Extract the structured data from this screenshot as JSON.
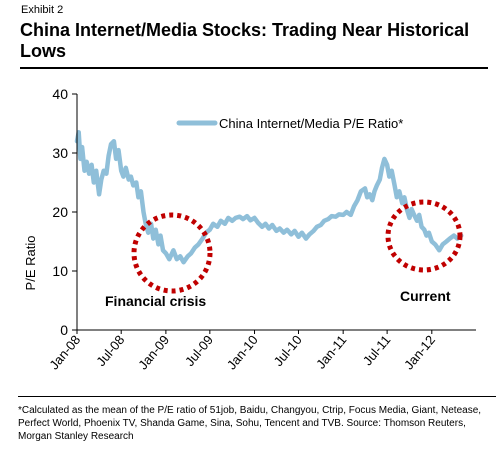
{
  "header": {
    "exhibit": "Exhibit 2",
    "title": "China Internet/Media Stocks: Trading Near Historical Lows"
  },
  "chart_data": {
    "type": "line",
    "title": "China Internet/Media Stocks: Trading Near Historical Lows",
    "xlabel": "",
    "ylabel": "P/E Ratio",
    "ylim": [
      0,
      40
    ],
    "yticks": [
      0,
      10,
      20,
      30,
      40
    ],
    "y_tick_labels": [
      "0",
      "10",
      "20",
      "30",
      "40"
    ],
    "x_tick_labels": [
      "Jan-08",
      "Jul-08",
      "Jan-09",
      "Jul-09",
      "Jan-10",
      "Jul-10",
      "Jan-11",
      "Jul-11",
      "Jan-12"
    ],
    "x_tick_dates": [
      "2008-01-01",
      "2008-07-01",
      "2009-01-01",
      "2009-07-01",
      "2010-01-01",
      "2010-07-01",
      "2011-01-01",
      "2011-07-01",
      "2012-01-01"
    ],
    "xlim": [
      "2008-01-01",
      "2012-07-01"
    ],
    "grid": false,
    "legend": "top-right",
    "series": [
      {
        "name": "China Internet/Media P/E Ratio*",
        "color": "#8fbfd9",
        "x": [
          "2008-01-01",
          "2008-01-08",
          "2008-01-15",
          "2008-01-22",
          "2008-02-01",
          "2008-02-10",
          "2008-02-20",
          "2008-03-01",
          "2008-03-10",
          "2008-03-20",
          "2008-04-01",
          "2008-04-10",
          "2008-04-20",
          "2008-05-01",
          "2008-05-10",
          "2008-05-20",
          "2008-06-01",
          "2008-06-10",
          "2008-06-20",
          "2008-07-01",
          "2008-07-10",
          "2008-07-20",
          "2008-08-01",
          "2008-08-10",
          "2008-08-20",
          "2008-09-01",
          "2008-09-10",
          "2008-09-20",
          "2008-10-01",
          "2008-10-10",
          "2008-10-20",
          "2008-11-01",
          "2008-11-10",
          "2008-11-20",
          "2008-12-01",
          "2008-12-10",
          "2008-12-20",
          "2009-01-01",
          "2009-01-15",
          "2009-02-01",
          "2009-02-15",
          "2009-03-01",
          "2009-03-15",
          "2009-04-01",
          "2009-04-15",
          "2009-05-01",
          "2009-05-15",
          "2009-06-01",
          "2009-06-15",
          "2009-07-01",
          "2009-07-15",
          "2009-08-01",
          "2009-08-15",
          "2009-09-01",
          "2009-09-15",
          "2009-10-01",
          "2009-10-15",
          "2009-11-01",
          "2009-11-15",
          "2009-12-01",
          "2009-12-15",
          "2010-01-01",
          "2010-01-15",
          "2010-02-01",
          "2010-02-15",
          "2010-03-01",
          "2010-03-15",
          "2010-04-01",
          "2010-04-15",
          "2010-05-01",
          "2010-05-15",
          "2010-06-01",
          "2010-06-15",
          "2010-07-01",
          "2010-07-15",
          "2010-08-01",
          "2010-08-15",
          "2010-09-01",
          "2010-09-15",
          "2010-10-01",
          "2010-10-15",
          "2010-11-01",
          "2010-11-15",
          "2010-12-01",
          "2010-12-15",
          "2011-01-01",
          "2011-01-15",
          "2011-02-01",
          "2011-02-15",
          "2011-03-01",
          "2011-03-15",
          "2011-04-01",
          "2011-04-10",
          "2011-04-20",
          "2011-05-01",
          "2011-05-10",
          "2011-05-20",
          "2011-06-01",
          "2011-06-10",
          "2011-06-20",
          "2011-07-01",
          "2011-07-10",
          "2011-07-20",
          "2011-08-01",
          "2011-08-10",
          "2011-08-20",
          "2011-09-01",
          "2011-09-10",
          "2011-09-20",
          "2011-10-01",
          "2011-10-10",
          "2011-10-20",
          "2011-11-01",
          "2011-11-10",
          "2011-11-20",
          "2011-12-01",
          "2011-12-10",
          "2011-12-20",
          "2012-01-01",
          "2012-01-15",
          "2012-02-01",
          "2012-02-15",
          "2012-03-01",
          "2012-03-15",
          "2012-04-01",
          "2012-04-15",
          "2012-05-01"
        ],
        "y": [
          32,
          33.5,
          29,
          31,
          27,
          28.5,
          26.5,
          28,
          25,
          27,
          23,
          25.5,
          27,
          26.5,
          29.5,
          31.5,
          32,
          29,
          30.5,
          27,
          26,
          27.5,
          25.5,
          26,
          24.5,
          25,
          22.5,
          23.5,
          20,
          18,
          16.5,
          18,
          15.5,
          17,
          14.5,
          16,
          13.5,
          13,
          12,
          13.5,
          12,
          12.5,
          11.5,
          12.5,
          13,
          14,
          14.5,
          15.5,
          16.5,
          17,
          18,
          17.5,
          18.5,
          18,
          19,
          18.5,
          19,
          19.2,
          18.8,
          19.3,
          18.6,
          19,
          18.2,
          17.5,
          18,
          17.2,
          17.8,
          16.8,
          17.2,
          16.5,
          17,
          16.2,
          16.8,
          15.8,
          16.5,
          15.5,
          16.2,
          16.8,
          17.5,
          17.8,
          18.5,
          18.8,
          19.3,
          19.2,
          19.6,
          19.5,
          20,
          19.5,
          21,
          22,
          23.5,
          24,
          22.5,
          23,
          22,
          23.5,
          24.5,
          25.5,
          27.5,
          29,
          28,
          26,
          27,
          24.5,
          22.5,
          23.5,
          21.5,
          22.5,
          20.5,
          19,
          20.5,
          19.5,
          18.5,
          19.5,
          17.5,
          17,
          16,
          16.5,
          15,
          14.5,
          13.5,
          14.5,
          15,
          15.5,
          16,
          15.5,
          16
        ]
      }
    ],
    "annotations": [
      "Financial crisis",
      "Current"
    ]
  },
  "footnote": "*Calculated as the mean of the P/E ratio of 51job, Baidu, Changyou, Ctrip, Focus Media, Giant, Netease, Perfect World, Phoenix TV, Shanda Game, Sina, Sohu, Tencent and TVB. Source: Thomson Reuters, Morgan Stanley Research",
  "styles": {
    "line_color": "#8fbfd9",
    "highlight_circle_color": "#c00000"
  }
}
